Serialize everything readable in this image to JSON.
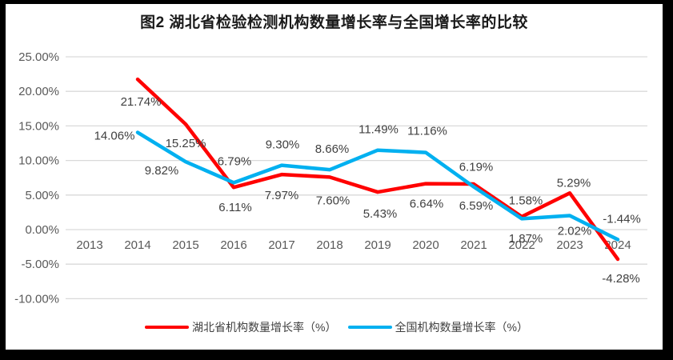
{
  "page": {
    "background": "#000000",
    "panel_background": "#ffffff"
  },
  "chart_data": {
    "type": "line",
    "title": "图2  湖北省检验检测机构数量增长率与全国增长率的比较",
    "categories": [
      "2013",
      "2014",
      "2015",
      "2016",
      "2017",
      "2018",
      "2019",
      "2020",
      "2021",
      "2022",
      "2023",
      "2024"
    ],
    "y_axis": {
      "min": -10,
      "max": 25,
      "ticks": [
        {
          "value": 25,
          "label": "25.00%"
        },
        {
          "value": 20,
          "label": "20.00%"
        },
        {
          "value": 15,
          "label": "15.00%"
        },
        {
          "value": 10,
          "label": "10.00%"
        },
        {
          "value": 5,
          "label": "5.00%"
        },
        {
          "value": 0,
          "label": "0.00%"
        },
        {
          "value": -5,
          "label": "-5.00%"
        },
        {
          "value": -10,
          "label": "-10.00%"
        }
      ]
    },
    "grid": true,
    "legend_position": "bottom",
    "series": [
      {
        "name": "湖北省机构数量增长率（%）",
        "color": "#FF0000",
        "values": [
          null,
          21.74,
          15.25,
          6.11,
          7.97,
          7.6,
          5.43,
          6.64,
          6.59,
          1.87,
          5.29,
          -4.28
        ],
        "labels": [
          "",
          "21.74%",
          "15.25%",
          "6.11%",
          "7.97%",
          "7.60%",
          "5.43%",
          "6.64%",
          "6.59%",
          "1.87%",
          "5.29%",
          "-4.28%"
        ],
        "label_offsets": [
          [
            0,
            0
          ],
          [
            4,
            28
          ],
          [
            0,
            24
          ],
          [
            2,
            25
          ],
          [
            0,
            26
          ],
          [
            4,
            29
          ],
          [
            3,
            27
          ],
          [
            1,
            25
          ],
          [
            3,
            27
          ],
          [
            5,
            27
          ],
          [
            5,
            -13
          ],
          [
            4,
            24
          ]
        ]
      },
      {
        "name": "全国机构数量增长率（%）",
        "color": "#00B0F0",
        "values": [
          null,
          14.06,
          9.82,
          6.79,
          9.3,
          8.66,
          11.49,
          11.16,
          6.19,
          1.58,
          2.02,
          -1.44
        ],
        "labels": [
          "",
          "14.06%",
          "9.82%",
          "6.79%",
          "9.30%",
          "8.66%",
          "11.49%",
          "11.16%",
          "6.19%",
          "1.58%",
          "2.02%",
          "-1.44%"
        ],
        "label_offsets": [
          [
            0,
            0
          ],
          [
            -29,
            4
          ],
          [
            -30,
            11
          ],
          [
            1,
            -27
          ],
          [
            1,
            -26
          ],
          [
            3,
            -26
          ],
          [
            1,
            -26
          ],
          [
            2,
            -27
          ],
          [
            3,
            -25
          ],
          [
            5,
            -23
          ],
          [
            6,
            19
          ],
          [
            5,
            -26
          ]
        ]
      }
    ],
    "colors": {
      "gridline": "#D9D9D9",
      "axis_text": "#595959",
      "data_label_text": "#3F3F3F",
      "title_text": "#1A1A1A"
    }
  }
}
